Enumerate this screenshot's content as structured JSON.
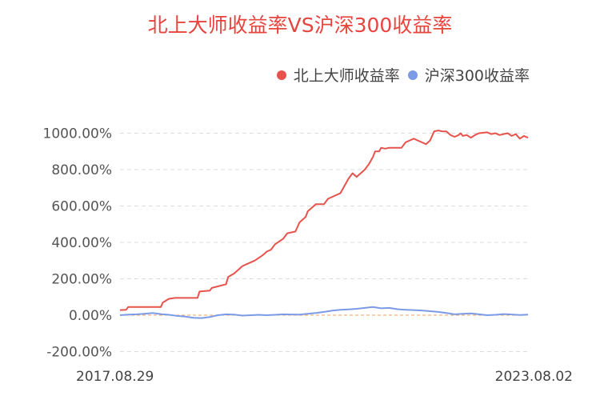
{
  "chart_data": {
    "type": "line",
    "title": "北上大师收益率VS沪深300收益率",
    "xlabel": "",
    "ylabel": "",
    "ylim": [
      -200,
      1100
    ],
    "yticks": [
      -200,
      0,
      200,
      400,
      600,
      800,
      1000
    ],
    "ytick_labels": [
      "-200.00%",
      "0.00%",
      "200.00%",
      "400.00%",
      "600.00%",
      "800.00%",
      "1000.00%"
    ],
    "x_range": [
      "2017.08.29",
      "2023.08.02"
    ],
    "x_tick_labels": [
      "2017.08.29",
      "2023.08.02"
    ],
    "grid": true,
    "legend_position": "top-right",
    "colors": {
      "north": "#e8524c",
      "hs300": "#7b9be6",
      "zero": "#f0a060",
      "grid": "#dddddd"
    },
    "series": [
      {
        "name": "北上大师收益率",
        "t": [
          0,
          0.015,
          0.02,
          0.1,
          0.105,
          0.12,
          0.135,
          0.19,
          0.195,
          0.22,
          0.225,
          0.26,
          0.265,
          0.28,
          0.3,
          0.31,
          0.33,
          0.35,
          0.36,
          0.37,
          0.38,
          0.4,
          0.41,
          0.43,
          0.44,
          0.455,
          0.46,
          0.48,
          0.5,
          0.51,
          0.52,
          0.54,
          0.56,
          0.57,
          0.58,
          0.6,
          0.61,
          0.62,
          0.625,
          0.635,
          0.64,
          0.65,
          0.66,
          0.675,
          0.69,
          0.7,
          0.72,
          0.73,
          0.75,
          0.76,
          0.77,
          0.78,
          0.79,
          0.8,
          0.81,
          0.82,
          0.83,
          0.835,
          0.84,
          0.85,
          0.86,
          0.87,
          0.88,
          0.9,
          0.91,
          0.92,
          0.93,
          0.95,
          0.96,
          0.97,
          0.98,
          0.99,
          1.0
        ],
        "values": [
          28,
          30,
          45,
          45,
          70,
          90,
          95,
          95,
          130,
          135,
          150,
          170,
          210,
          230,
          270,
          280,
          300,
          330,
          350,
          360,
          390,
          420,
          450,
          460,
          510,
          540,
          570,
          610,
          610,
          640,
          650,
          670,
          750,
          780,
          760,
          800,
          830,
          870,
          900,
          900,
          920,
          915,
          920,
          920,
          920,
          950,
          970,
          960,
          940,
          960,
          1010,
          1015,
          1010,
          1010,
          990,
          980,
          990,
          1000,
          985,
          990,
          975,
          990,
          1000,
          1005,
          995,
          1000,
          990,
          1000,
          985,
          995,
          970,
          985,
          975
        ]
      },
      {
        "name": "沪深300收益率",
        "t": [
          0,
          0.02,
          0.04,
          0.06,
          0.08,
          0.1,
          0.12,
          0.14,
          0.16,
          0.18,
          0.2,
          0.22,
          0.24,
          0.26,
          0.28,
          0.3,
          0.32,
          0.34,
          0.36,
          0.38,
          0.4,
          0.42,
          0.44,
          0.46,
          0.48,
          0.5,
          0.52,
          0.54,
          0.56,
          0.58,
          0.6,
          0.62,
          0.64,
          0.66,
          0.68,
          0.7,
          0.72,
          0.74,
          0.76,
          0.78,
          0.8,
          0.82,
          0.84,
          0.86,
          0.88,
          0.9,
          0.92,
          0.94,
          0.96,
          0.98,
          1.0
        ],
        "values": [
          0,
          3,
          5,
          8,
          12,
          6,
          2,
          -4,
          -8,
          -14,
          -16,
          -10,
          0,
          5,
          3,
          -2,
          0,
          2,
          0,
          2,
          5,
          4,
          3,
          8,
          12,
          18,
          25,
          30,
          32,
          35,
          40,
          45,
          38,
          40,
          33,
          30,
          28,
          26,
          22,
          18,
          12,
          5,
          8,
          10,
          5,
          0,
          2,
          6,
          4,
          1,
          3
        ]
      }
    ]
  }
}
